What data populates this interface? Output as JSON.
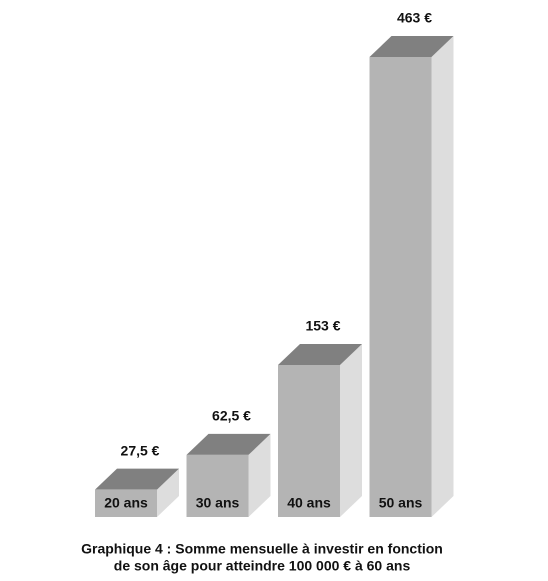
{
  "chart_data": {
    "type": "bar3d",
    "categories": [
      "20 ans",
      "30 ans",
      "40 ans",
      "50 ans"
    ],
    "values": [
      27.5,
      62.5,
      153,
      463
    ],
    "value_labels": [
      "27,5 €",
      "62,5 €",
      "153 €",
      "463 €"
    ],
    "colors": {
      "front": "#b4b4b4",
      "top": "#808080",
      "side": "#dddddd"
    },
    "caption": [
      "Graphique 4 : Somme mensuelle à investir en fonction",
      "de son âge pour atteindre 100 000 € à 60 ans"
    ]
  }
}
